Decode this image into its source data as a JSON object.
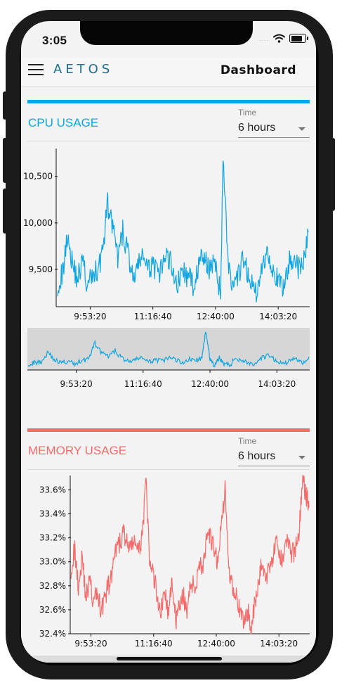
{
  "status_bar": {
    "time": "3:05",
    "dots": "....",
    "icons": [
      "wifi-icon",
      "battery-icon"
    ]
  },
  "header": {
    "logo": "AETOS",
    "title": "Dashboard"
  },
  "colors": {
    "cpu": "#0ea5e0",
    "memory": "#f36b6b",
    "logo": "#1f6e8f"
  },
  "cpu_section": {
    "title": "CPU USAGE",
    "time_label": "Time",
    "time_value": "6 hours",
    "time_options": [
      "6 hours"
    ]
  },
  "memory_section": {
    "title": "MEMORY USAGE",
    "time_label": "Time",
    "time_value": "6 hours",
    "time_options": [
      "6 hours"
    ]
  },
  "chart_data": [
    {
      "type": "line",
      "series_color": "#0ea5e0",
      "x_ticks": [
        "9:53:20",
        "11:16:40",
        "12:40:00",
        "14:03:20"
      ],
      "y_ticks": [
        "9,500",
        "10,000",
        "10,500"
      ],
      "y_tick_values": [
        9500,
        10000,
        10500
      ],
      "ylim": [
        9100,
        10800
      ],
      "x_range_seconds": [
        33000,
        53000
      ],
      "x_tick_seconds": [
        35600,
        40600,
        45600,
        50600
      ],
      "series": [
        {
          "x": [
            33000,
            33400,
            33800,
            34200,
            34600,
            35000,
            35400,
            35800,
            36200,
            36600,
            37000,
            37400,
            37800,
            38200,
            38600,
            39000,
            39400,
            39800,
            40200,
            40600,
            41000,
            41400,
            41800,
            42200,
            42600,
            43000,
            43400,
            43800,
            44200,
            44600,
            45000,
            45400,
            45800,
            46000,
            46200,
            46600,
            47000,
            47400,
            47800,
            48200,
            48600,
            49000,
            49400,
            49800,
            50200,
            50600,
            51000,
            51400,
            51800,
            52200,
            52600,
            53000
          ],
          "values": [
            9350,
            9450,
            9900,
            9550,
            9400,
            9600,
            9300,
            9450,
            9500,
            9700,
            10200,
            9950,
            9600,
            9900,
            9700,
            9400,
            9500,
            9700,
            9450,
            9600,
            9400,
            9550,
            9650,
            9500,
            9350,
            9500,
            9400,
            9350,
            9500,
            9650,
            9500,
            9600,
            9400,
            9200,
            10750,
            9600,
            9250,
            9400,
            9600,
            9450,
            9300,
            9250,
            9600,
            9700,
            9500,
            9350,
            9300,
            9550,
            9650,
            9500,
            9550,
            9900
          ]
        }
      ]
    },
    {
      "type": "area",
      "role": "navigator",
      "series_color": "#0ea5e0",
      "x_ticks": [
        "9:53:20",
        "11:16:40",
        "12:40:00",
        "14:03:20"
      ],
      "x_tick_seconds": [
        35600,
        40600,
        45600,
        50600
      ],
      "x_range_seconds": [
        32000,
        53000
      ],
      "ylim": [
        9100,
        10800
      ],
      "series": [
        {
          "x": [
            32000,
            32500,
            33000,
            33500,
            34000,
            34500,
            35000,
            35500,
            36000,
            36500,
            37000,
            37500,
            38000,
            38500,
            39000,
            39500,
            40000,
            40500,
            41000,
            41500,
            42000,
            42500,
            43000,
            43500,
            44000,
            44500,
            45000,
            45300,
            45600,
            45900,
            46300,
            46700,
            47100,
            47500,
            48000,
            48500,
            49000,
            49500,
            50000,
            50500,
            51000,
            51500,
            52000,
            52500,
            53000
          ],
          "values": [
            9350,
            9400,
            9450,
            9850,
            9500,
            9400,
            9450,
            9350,
            9500,
            9550,
            10200,
            9800,
            9650,
            9900,
            9600,
            9450,
            9500,
            9650,
            9400,
            9550,
            9450,
            9600,
            9550,
            9400,
            9550,
            9500,
            9600,
            10750,
            9550,
            9250,
            9600,
            9350,
            9300,
            9600,
            9500,
            9400,
            9300,
            9600,
            9700,
            9500,
            9350,
            9450,
            9600,
            9400,
            9650
          ]
        }
      ]
    },
    {
      "type": "line",
      "series_color": "#f36b6b",
      "x_ticks": [
        "9:53:20",
        "11:16:40",
        "12:40:00",
        "14:03:20"
      ],
      "x_tick_seconds": [
        35600,
        40600,
        45600,
        50600
      ],
      "x_range_seconds": [
        34000,
        53000
      ],
      "y_ticks": [
        "32.4%",
        "32.6%",
        "32.8%",
        "33.0%",
        "33.2%",
        "33.4%",
        "33.6%"
      ],
      "y_tick_values": [
        32.4,
        32.6,
        32.8,
        33.0,
        33.2,
        33.4,
        33.6
      ],
      "ylim": [
        32.4,
        33.72
      ],
      "series": [
        {
          "x": [
            34000,
            34300,
            34600,
            34900,
            35200,
            35500,
            35800,
            36100,
            36400,
            36700,
            37000,
            37300,
            37600,
            37900,
            38200,
            38500,
            38800,
            39100,
            39400,
            39700,
            40000,
            40300,
            40600,
            40900,
            41200,
            41500,
            41800,
            42100,
            42400,
            42700,
            43000,
            43300,
            43600,
            43900,
            44200,
            44500,
            44800,
            45100,
            45400,
            45700,
            46000,
            46300,
            46600,
            46900,
            47200,
            47500,
            47800,
            48100,
            48400,
            48600,
            48900,
            49200,
            49500,
            49800,
            50100,
            50400,
            50700,
            51000,
            51300,
            51600,
            51900,
            52200,
            52500,
            52800,
            53000
          ],
          "values": [
            32.95,
            33.1,
            32.8,
            33.05,
            32.7,
            32.85,
            32.65,
            32.75,
            32.6,
            32.7,
            32.8,
            32.9,
            33.1,
            33.15,
            33.25,
            33.15,
            33.1,
            33.2,
            33.05,
            33.25,
            33.65,
            32.95,
            32.9,
            32.7,
            32.6,
            32.75,
            32.55,
            32.85,
            32.5,
            32.65,
            32.7,
            32.6,
            32.85,
            32.75,
            33.0,
            32.95,
            33.15,
            33.2,
            33.1,
            33.0,
            33.3,
            33.6,
            32.95,
            32.8,
            32.75,
            32.55,
            32.5,
            32.6,
            32.45,
            32.6,
            32.75,
            33.0,
            32.85,
            32.95,
            33.05,
            33.15,
            33.0,
            33.1,
            33.2,
            33.05,
            33.1,
            33.25,
            33.7,
            33.55,
            33.45
          ]
        }
      ]
    }
  ]
}
